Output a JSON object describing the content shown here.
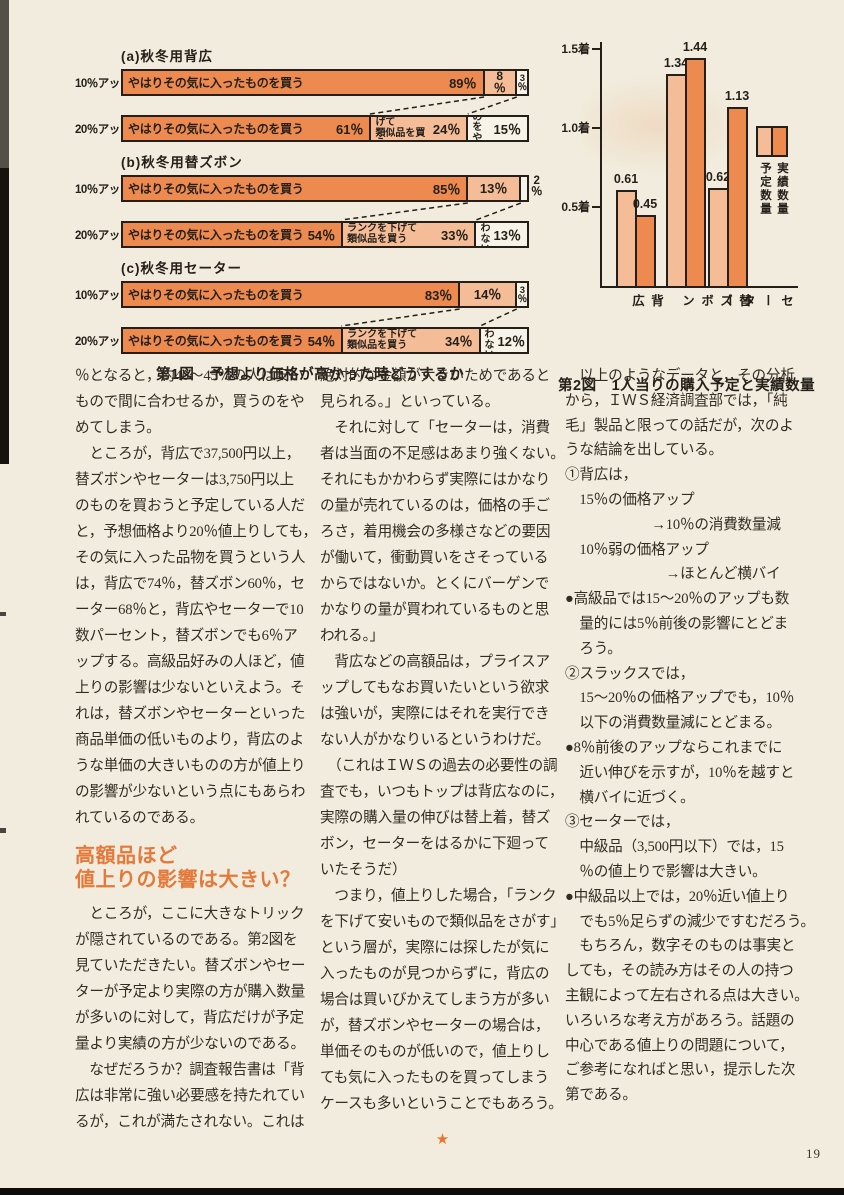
{
  "page": {
    "number": "19"
  },
  "colors": {
    "dark": "#ec8a50",
    "light": "#f5bd97",
    "white": "#f7f3e8",
    "heading": "#e5793a",
    "ink": "#241f19",
    "paper": "#f1ecdd",
    "star": "#e8742e"
  },
  "chart_data": [
    {
      "type": "bar",
      "subtype": "horizontal-stacked",
      "title": "第1図　予想より価格が高かった時どうするか",
      "unit": "％",
      "groups": [
        {
          "heading": "(a)秋冬用背広",
          "rows": [
            {
              "label": "10％アップ",
              "segments": [
                {
                  "name": "やはりその気に入ったものを買う",
                  "value": 89,
                  "display": "89％",
                  "color": "dark"
                },
                {
                  "value": 8,
                  "display": "8％",
                  "color": "light",
                  "stacked": true
                },
                {
                  "value": 3,
                  "display": "3％",
                  "color": "white",
                  "stacked": true
                }
              ]
            },
            {
              "label": "20％アップ",
              "segments": [
                {
                  "name": "やはりその気に入ったものを買う",
                  "value": 61,
                  "display": "61％",
                  "color": "dark"
                },
                {
                  "name": "ランクを下げて\n類似品を買う",
                  "value": 24,
                  "display": "24％",
                  "color": "light",
                  "note": true
                },
                {
                  "name": "買うのを\nやめる",
                  "value": 15,
                  "display": "15％",
                  "color": "white",
                  "note": true
                }
              ]
            }
          ]
        },
        {
          "heading": "(b)秋冬用替ズボン",
          "rows": [
            {
              "label": "10％アップ",
              "segments": [
                {
                  "name": "やはりその気に入ったものを買う",
                  "value": 85,
                  "display": "85％",
                  "color": "dark"
                },
                {
                  "value": 13,
                  "display": "13％",
                  "color": "light",
                  "centered": true
                },
                {
                  "value": 2,
                  "display": "2％",
                  "color": "white",
                  "outside": true
                }
              ]
            },
            {
              "label": "20％アップ",
              "segments": [
                {
                  "name": "やはりその気に入ったものを買う",
                  "value": 54,
                  "display": "54％",
                  "color": "dark"
                },
                {
                  "name": "ランクを下げて\n類似品を買う",
                  "value": 33,
                  "display": "33％",
                  "color": "light",
                  "note": true
                },
                {
                  "name": "買わ\nない",
                  "value": 13,
                  "display": "13％",
                  "color": "white",
                  "note": true
                }
              ]
            }
          ]
        },
        {
          "heading": "(c)秋冬用セーター",
          "rows": [
            {
              "label": "10％アップ",
              "segments": [
                {
                  "name": "やはりその気に入ったものを買う",
                  "value": 83,
                  "display": "83％",
                  "color": "dark"
                },
                {
                  "value": 14,
                  "display": "14％",
                  "color": "light",
                  "centered": true
                },
                {
                  "value": 3,
                  "display": "3％",
                  "color": "white",
                  "stacked": true
                }
              ]
            },
            {
              "label": "20％アップ",
              "segments": [
                {
                  "name": "やはりその気に入ったものを買う",
                  "value": 54,
                  "display": "54％",
                  "color": "dark"
                },
                {
                  "name": "ランクを下げて\n類似品を買う",
                  "value": 34,
                  "display": "34％",
                  "color": "light",
                  "note": true
                },
                {
                  "name": "買わ\nない",
                  "value": 12,
                  "display": "12％",
                  "color": "white",
                  "note": true
                }
              ]
            }
          ]
        }
      ]
    },
    {
      "type": "bar",
      "title": "第2図　1人当りの購入予定と実績数量",
      "categories": [
        "背広",
        "替ズボン",
        "セーター"
      ],
      "series": [
        {
          "name": "予定数量",
          "color": "#f5bd97",
          "values": [
            0.61,
            1.34,
            0.62
          ]
        },
        {
          "name": "実績数量",
          "color": "#ec8a50",
          "values": [
            0.45,
            1.44,
            1.13
          ]
        }
      ],
      "yticks": [
        {
          "value": 1.5,
          "label": "1.5着"
        },
        {
          "value": 1.0,
          "label": "1.0着"
        },
        {
          "value": 0.5,
          "label": "0.5着"
        }
      ],
      "ylim": [
        0,
        1.5
      ],
      "legend_position": "right",
      "value_labels": true
    }
  ],
  "article": {
    "heading": [
      "高額品ほど",
      "値上りの影響は大きい？"
    ],
    "star": "★",
    "col1_part1": [
      "％となると，約40～45％の人は安い",
      "もので間に合わせるか，買うのをや",
      "めてしまう。",
      "　ところが，背広で37,500円以上，",
      "替ズボンやセーターは3,750円以上",
      "のものを買おうと予定している人だ",
      "と，予想価格より20％値上りしても，",
      "その気に入った品物を買うという人",
      "は，背広で74％，替ズボン60％，セ",
      "ーター68％と，背広やセーターで10",
      "数パーセント，替ズボンでも6％ア",
      "ップする。高級品好みの人ほど，値",
      "上りの影響は少ないといえよう。そ",
      "れは，替ズボンやセーターといった",
      "商品単価の低いものより，背広のよ",
      "うな単価の大きいものの方が値上り",
      "の影響が少ないという点にもあらわ",
      "れているのである。"
    ],
    "col1_part2": [
      "　ところが，ここに大きなトリック",
      "が隠されているのである。第2図を",
      "見ていただきたい。替ズボンやセー",
      "ターが予定より実際の方が購入数量",
      "が多いのに対して，背広だけが予定",
      "量より実績の方が少ないのである。",
      "　なぜだろうか？調査報告書は「背",
      "広は非常に強い必要感を持たれてい",
      "るが，これが満たされない。これは"
    ],
    "col2": [
      "絶対的な金額が大きいためであると",
      "見られる。」といっている。",
      "　それに対して「セーターは，消費",
      "者は当面の不足感はあまり強くない。",
      "それにもかかわらず実際にはかなり",
      "の量が売れているのは，価格の手ご",
      "ろさ，着用機会の多様さなどの要因",
      "が働いて，衝動買いをさそっている",
      "からではないか。とくにバーゲンで",
      "かなりの量が買われているものと思",
      "われる。」",
      "　背広などの高額品は，プライスア",
      "ップしてもなお買いたいという欲求",
      "は強いが，実際にはそれを実行でき",
      "ない人がかなりいるというわけだ。",
      "　（これはＩＷＳの過去の必要性の調",
      "査でも，いつもトップは背広なのに，",
      "実際の購入量の伸びは替上着，替ズ",
      "ボン，セーターをはるかに下廻って",
      "いたそうだ）",
      "　つまり，値上りした場合，「ランク",
      "を下げて安いもので類似品をさがす」",
      "という層が，実際には探したが気に",
      "入ったものが見つからずに，背広の",
      "場合は買いびかえてしまう方が多い",
      "が，替ズボンやセーターの場合は，",
      "単価そのものが低いので，値上りし",
      "ても気に入ったものを買ってしまう",
      "ケースも多いということでもあろう。"
    ],
    "col3": [
      "　以上のようなデータと，その分析",
      "から，ＩＷＳ経済調査部では，「純",
      "毛」製品と限っての話だが，次のよ",
      "うな結論を出している。",
      "①背広は，",
      "　15％の価格アップ",
      "　　　　　　→10％の消費数量減",
      "　10％弱の価格アップ",
      "　　　　　　　→ほとんど横バイ",
      "●高級品では15～20％のアップも数",
      "　量的には5％前後の影響にとどま",
      "　ろう。",
      "②スラックスでは，",
      "　15～20％の価格アップでも，10％",
      "　以下の消費数量減にとどまる。",
      "●8％前後のアップならこれまでに",
      "　近い伸びを示すが，10％を越すと",
      "　横バイに近づく。",
      "③セーターでは，",
      "　中級品（3,500円以下）では，15",
      "　％の値上りで影響は大きい。",
      "●中級品以上では，20％近い値上り",
      "　でも5％足らずの減少ですむだろう。",
      "　もちろん，数字そのものは事実と",
      "しても，その読み方はその人の持つ",
      "主観によって左右される点は大きい。",
      "いろいろな考え方があろう。話題の",
      "中心である値上りの問題について，",
      "ご参考になればと思い，提示した次",
      "第である。"
    ]
  }
}
